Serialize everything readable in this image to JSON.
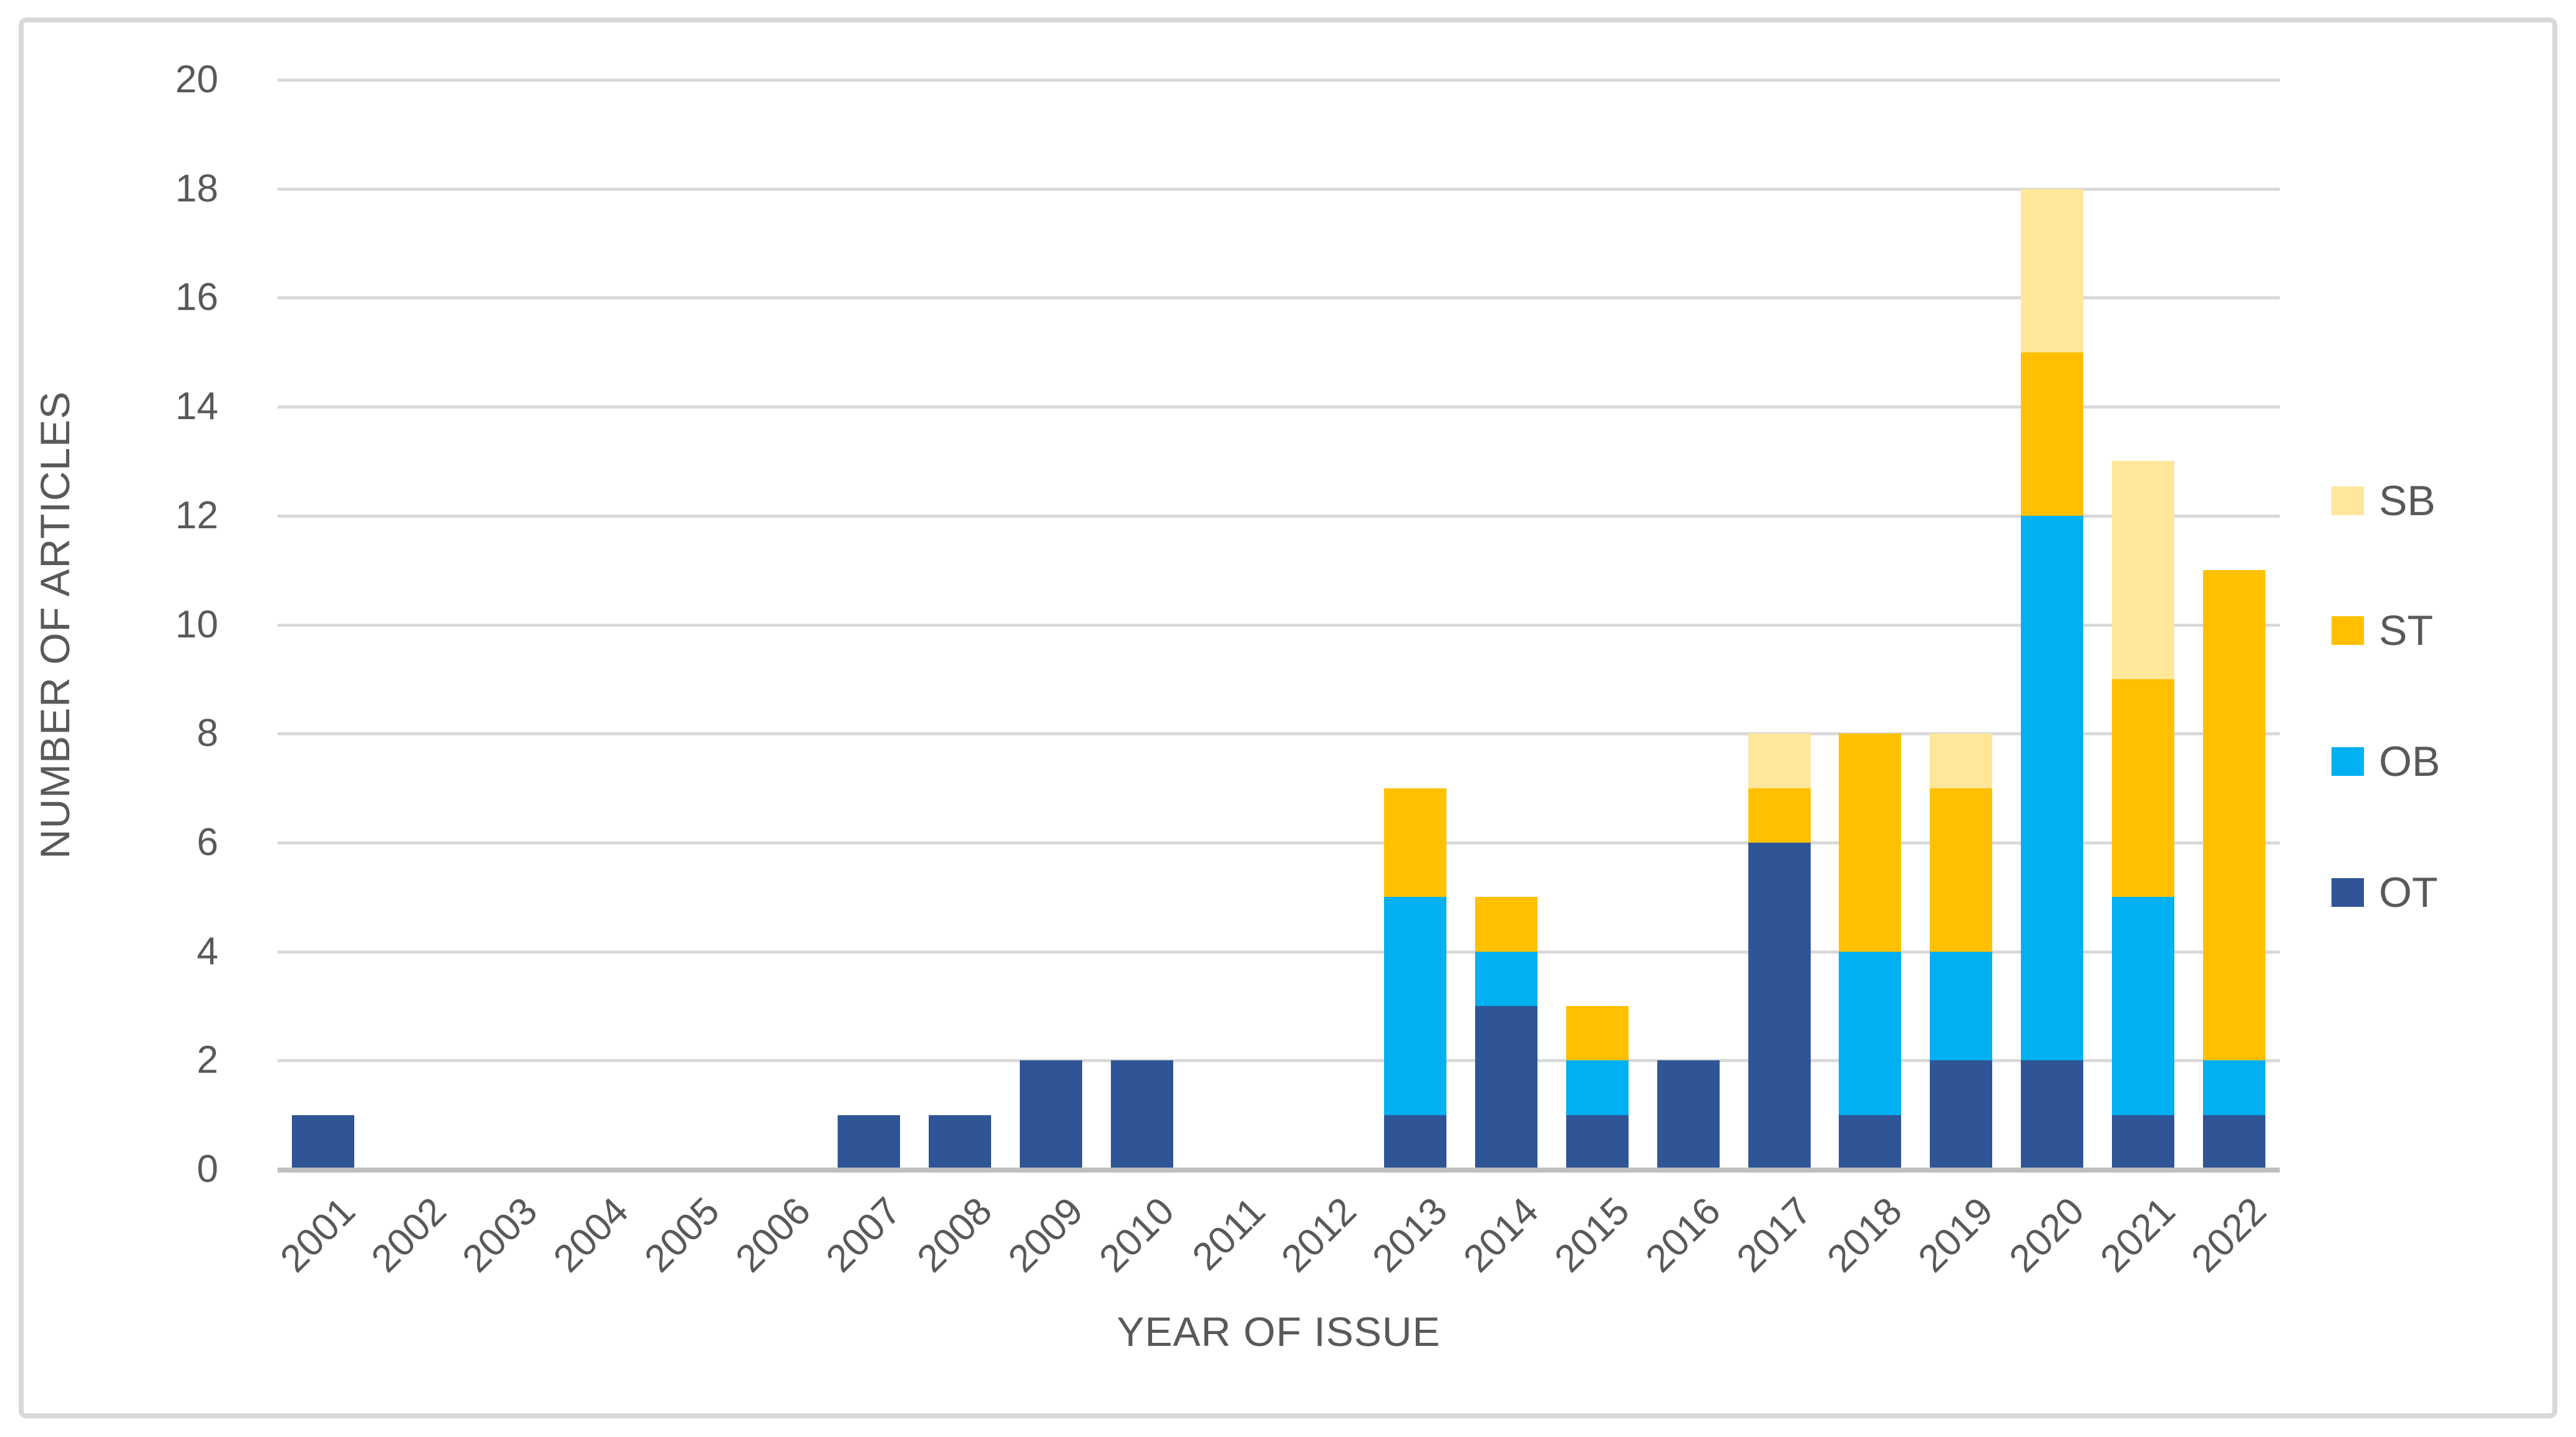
{
  "figure": {
    "background": "#FFFFFF",
    "border_color": "#D9D9D9"
  },
  "chart_data": {
    "type": "bar",
    "stacked": true,
    "title": "",
    "xlabel": "YEAR OF ISSUE",
    "ylabel": "NUMBER OF ARTICLES",
    "categories": [
      "2001",
      "2002",
      "2003",
      "2004",
      "2005",
      "2006",
      "2007",
      "2008",
      "2009",
      "2010",
      "2011",
      "2012",
      "2013",
      "2014",
      "2015",
      "2016",
      "2017",
      "2018",
      "2019",
      "2020",
      "2021",
      "2022"
    ],
    "series": [
      {
        "name": "OT",
        "color": "#2F5596",
        "values": [
          1,
          0,
          0,
          0,
          0,
          0,
          1,
          1,
          2,
          2,
          0,
          0,
          1,
          3,
          1,
          2,
          6,
          1,
          2,
          2,
          1,
          1
        ]
      },
      {
        "name": "OB",
        "color": "#00B0F0",
        "values": [
          0,
          0,
          0,
          0,
          0,
          0,
          0,
          0,
          0,
          0,
          0,
          0,
          4,
          1,
          1,
          0,
          0,
          3,
          2,
          10,
          4,
          1
        ]
      },
      {
        "name": "ST",
        "color": "#FFC000",
        "values": [
          0,
          0,
          0,
          0,
          0,
          0,
          0,
          0,
          0,
          0,
          0,
          0,
          2,
          1,
          1,
          0,
          1,
          4,
          3,
          3,
          4,
          9
        ]
      },
      {
        "name": "SB",
        "color": "#FFE699",
        "values": [
          0,
          0,
          0,
          0,
          0,
          0,
          0,
          0,
          0,
          0,
          0,
          0,
          0,
          0,
          0,
          0,
          1,
          0,
          1,
          3,
          4,
          0
        ]
      }
    ],
    "totals_by_year": [
      1,
      0,
      0,
      0,
      0,
      0,
      1,
      1,
      2,
      2,
      0,
      0,
      7,
      5,
      3,
      2,
      8,
      8,
      8,
      18,
      13,
      11
    ],
    "legend_order_top_to_bottom": [
      "SB",
      "ST",
      "OB",
      "OT"
    ],
    "legend_position": "right",
    "ylim": [
      0,
      20
    ],
    "ytick_step": 2,
    "yticks": [
      "0",
      "2",
      "4",
      "6",
      "8",
      "10",
      "12",
      "14",
      "16",
      "18",
      "20"
    ],
    "grid": true,
    "gridline_color": "#D9D9D9",
    "axis_line_color": "#BFBFBF",
    "text_color": "#595959"
  }
}
